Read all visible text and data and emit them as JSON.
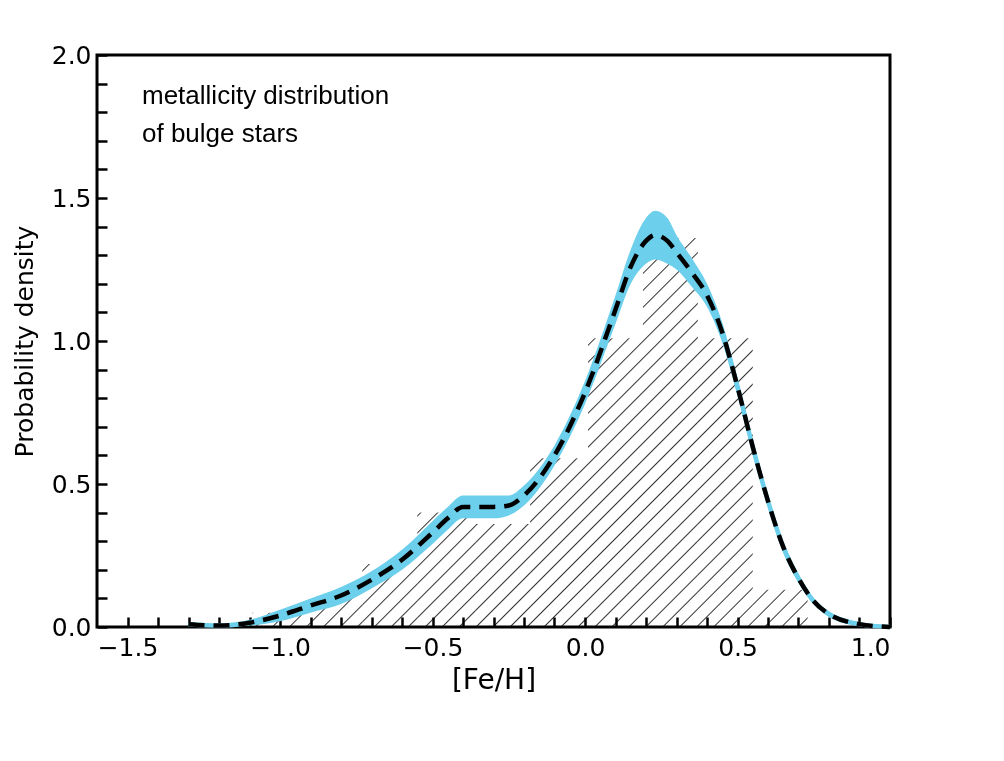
{
  "chart_data": {
    "type": "histogram",
    "xlabel": "[Fe/H]",
    "ylabel": "Probability density",
    "annotations": [
      "metallicity distribution\nof bulge stars"
    ],
    "xlim": [
      -1.6,
      1.0
    ],
    "ylim": [
      0,
      2.0
    ],
    "xticks": [
      {
        "value": -1.5,
        "label": "−1.5"
      },
      {
        "value": -1.4,
        "label": null
      },
      {
        "value": -1.3,
        "label": null
      },
      {
        "value": -1.2,
        "label": null
      },
      {
        "value": -1.1,
        "label": null
      },
      {
        "value": -1.0,
        "label": "−1.0"
      },
      {
        "value": -0.9,
        "label": null
      },
      {
        "value": -0.8,
        "label": null
      },
      {
        "value": -0.7,
        "label": null
      },
      {
        "value": -0.6,
        "label": null
      },
      {
        "value": -0.5,
        "label": "−0.5"
      },
      {
        "value": -0.4,
        "label": null
      },
      {
        "value": -0.3,
        "label": null
      },
      {
        "value": -0.2,
        "label": null
      },
      {
        "value": -0.1,
        "label": null
      },
      {
        "value": 0,
        "label": "0.0"
      },
      {
        "value": 0.1,
        "label": null
      },
      {
        "value": 0.2,
        "label": null
      },
      {
        "value": 0.3,
        "label": null
      },
      {
        "value": 0.4,
        "label": null
      },
      {
        "value": 0.5,
        "label": "0.5"
      },
      {
        "value": 0.6,
        "label": null
      },
      {
        "value": 0.7,
        "label": null
      },
      {
        "value": 0.8,
        "label": null
      },
      {
        "value": 0.9,
        "label": null
      },
      {
        "value": 1.0,
        "label": "1.0"
      }
    ],
    "yticks": [
      {
        "value": 0,
        "label": "0.0"
      },
      {
        "value": 0.1,
        "label": null
      },
      {
        "value": 0.2,
        "label": null
      },
      {
        "value": 0.3,
        "label": null
      },
      {
        "value": 0.4,
        "label": null
      },
      {
        "value": 0.5,
        "label": "0.5"
      },
      {
        "value": 0.6,
        "label": null
      },
      {
        "value": 0.7,
        "label": null
      },
      {
        "value": 0.8,
        "label": null
      },
      {
        "value": 0.9,
        "label": null
      },
      {
        "value": 1.0,
        "label": "1.0"
      },
      {
        "value": 1.1,
        "label": null
      },
      {
        "value": 1.2,
        "label": null
      },
      {
        "value": 1.3,
        "label": null
      },
      {
        "value": 1.4,
        "label": null
      },
      {
        "value": 1.5,
        "label": "1.5"
      },
      {
        "value": 1.6,
        "label": null
      },
      {
        "value": 1.7,
        "label": null
      },
      {
        "value": 1.8,
        "label": null
      },
      {
        "value": 1.9,
        "label": null
      },
      {
        "value": 2.0,
        "label": "2.0"
      }
    ],
    "grid": false,
    "series": [
      {
        "color": "#000000",
        "bins": [
          -1.09,
          -0.91,
          -0.73,
          -0.55,
          -0.36,
          -0.18,
          0.01,
          0.19,
          0.37,
          0.55,
          0.73
        ],
        "values": [
          0.05,
          0.11,
          0.22,
          0.4,
          0.36,
          0.59,
          1.01,
          1.36,
          1.01,
          0.13
        ]
      },
      {
        "type": "line",
        "color": "#6ccfeb",
        "x": [
          -1.3,
          -1.2,
          -1.1,
          -1.0,
          -0.9,
          -0.8,
          -0.7,
          -0.6,
          -0.5,
          -0.45,
          -0.4,
          -0.3,
          -0.25,
          -0.2,
          -0.1,
          0.0,
          0.1,
          0.15,
          0.2,
          0.23,
          0.27,
          0.3,
          0.35,
          0.4,
          0.45,
          0.5,
          0.55,
          0.6,
          0.65,
          0.7,
          0.75,
          0.8,
          0.9,
          1.0
        ],
        "values": [
          0.01,
          0.005,
          0.015,
          0.04,
          0.075,
          0.11,
          0.165,
          0.235,
          0.33,
          0.38,
          0.42,
          0.42,
          0.425,
          0.46,
          0.6,
          0.82,
          1.11,
          1.26,
          1.35,
          1.37,
          1.35,
          1.31,
          1.24,
          1.16,
          1.03,
          0.84,
          0.63,
          0.44,
          0.28,
          0.17,
          0.09,
          0.045,
          0.01,
          0.0
        ],
        "lower": [
          0.005,
          0.0,
          0.005,
          0.02,
          0.05,
          0.08,
          0.135,
          0.2,
          0.29,
          0.34,
          0.38,
          0.38,
          0.39,
          0.425,
          0.565,
          0.78,
          1.06,
          1.2,
          1.27,
          1.285,
          1.27,
          1.25,
          1.19,
          1.12,
          0.995,
          0.81,
          0.605,
          0.42,
          0.26,
          0.155,
          0.08,
          0.035,
          0.005,
          0.0
        ],
        "upper": [
          0.015,
          0.01,
          0.025,
          0.06,
          0.1,
          0.14,
          0.195,
          0.27,
          0.37,
          0.42,
          0.46,
          0.46,
          0.46,
          0.495,
          0.635,
          0.86,
          1.16,
          1.32,
          1.43,
          1.455,
          1.43,
          1.37,
          1.29,
          1.2,
          1.065,
          0.87,
          0.655,
          0.46,
          0.3,
          0.185,
          0.1,
          0.055,
          0.015,
          0.0
        ]
      },
      {
        "type": "line",
        "color": "#000000",
        "line_style": "dashed",
        "x": [
          -1.3,
          -1.2,
          -1.1,
          -1.0,
          -0.9,
          -0.8,
          -0.7,
          -0.6,
          -0.5,
          -0.45,
          -0.4,
          -0.3,
          -0.25,
          -0.2,
          -0.1,
          0.0,
          0.1,
          0.15,
          0.2,
          0.23,
          0.27,
          0.3,
          0.35,
          0.4,
          0.45,
          0.5,
          0.55,
          0.6,
          0.65,
          0.7,
          0.75,
          0.8,
          0.9,
          1.0
        ],
        "values": [
          0.01,
          0.005,
          0.015,
          0.04,
          0.075,
          0.11,
          0.165,
          0.235,
          0.33,
          0.38,
          0.42,
          0.42,
          0.425,
          0.46,
          0.6,
          0.82,
          1.11,
          1.26,
          1.35,
          1.37,
          1.35,
          1.31,
          1.24,
          1.16,
          1.03,
          0.84,
          0.63,
          0.44,
          0.28,
          0.17,
          0.09,
          0.045,
          0.01,
          0.0
        ]
      }
    ]
  }
}
